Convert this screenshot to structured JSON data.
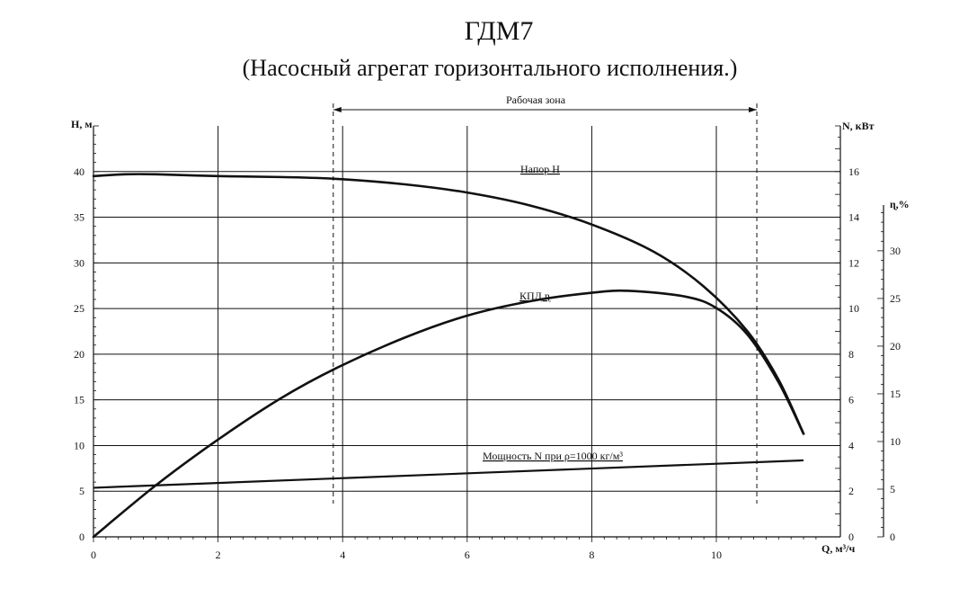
{
  "chart_data": {
    "type": "line",
    "title": "ГДМ7",
    "subtitle": "(Насосный агрегат горизонтального исполнения.)",
    "x_axis": {
      "label": "Q, м³/ч",
      "range": [
        0,
        11.8
      ],
      "ticks": [
        0,
        2,
        4,
        6,
        8,
        10
      ]
    },
    "y_left": {
      "label": "H, м",
      "range": [
        0,
        45
      ],
      "ticks": [
        0,
        5,
        10,
        15,
        20,
        25,
        30,
        35,
        40
      ]
    },
    "y_right_power": {
      "label": "N, кВт",
      "range": [
        0,
        18
      ],
      "ticks": [
        0,
        2,
        4,
        6,
        8,
        10,
        12,
        14,
        16
      ]
    },
    "y_right_eff": {
      "label": "ɳ,%",
      "range": [
        0,
        34.8
      ],
      "ticks": [
        0,
        5,
        10,
        15,
        20,
        25,
        30
      ]
    },
    "grid": true,
    "working_zone": {
      "label": "Рабочая зона",
      "x_start": 3.85,
      "x_end": 10.65
    },
    "series": [
      {
        "name": "Напор Н",
        "axis": "left",
        "x": [
          0,
          0.5,
          1,
          2,
          3,
          3.9,
          5,
          6,
          7,
          8,
          9,
          9.8,
          10.5,
          11,
          11.4
        ],
        "y": [
          39.5,
          39.7,
          39.7,
          39.5,
          39.4,
          39.2,
          38.6,
          37.7,
          36.3,
          34.2,
          31.2,
          27.4,
          22.5,
          17.2,
          11.3
        ]
      },
      {
        "name": "КПД ɳ",
        "axis": "eff",
        "x": [
          0,
          1,
          2,
          3,
          3.9,
          5,
          6,
          7,
          8,
          8.6,
          9.5,
          10,
          10.5,
          11,
          11.4
        ],
        "y": [
          0,
          5.4,
          10.2,
          14.5,
          17.7,
          20.9,
          23.2,
          24.7,
          25.6,
          25.8,
          25.2,
          24.0,
          21.2,
          16.2,
          10.8
        ]
      },
      {
        "name": "Мощность N при ρ=1000 кг/м³",
        "axis": "power",
        "x": [
          0,
          11.4
        ],
        "y": [
          2.15,
          3.35
        ]
      }
    ]
  }
}
